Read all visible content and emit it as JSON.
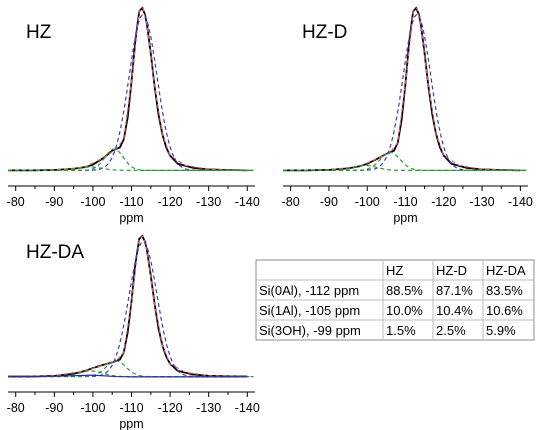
{
  "chart_data": [
    {
      "type": "line",
      "title": "HZ",
      "xlabel": "ppm",
      "ylabel": "",
      "x_ticks": [
        -80,
        -90,
        -100,
        -110,
        -120,
        -130,
        -140
      ],
      "xlim": [
        -78,
        -142
      ],
      "x_reversed": true,
      "peaks_ppm": [
        -112,
        -105,
        -99
      ],
      "series": [
        {
          "key": "experimental",
          "color": "#000000",
          "style": "solid",
          "x": [
            -78,
            -84,
            -90,
            -95,
            -98,
            -100,
            -103,
            -105,
            -107,
            -108,
            -109,
            -110,
            -111,
            -112,
            -112.8,
            -113.5,
            -114,
            -115,
            -116,
            -117,
            -118,
            -119,
            -120,
            -122,
            -126,
            -130,
            -135,
            -140
          ],
          "y": [
            0.01,
            0.01,
            0.012,
            0.02,
            0.03,
            0.045,
            0.09,
            0.13,
            0.15,
            0.2,
            0.33,
            0.55,
            0.8,
            0.98,
            1.0,
            0.96,
            0.9,
            0.72,
            0.52,
            0.35,
            0.23,
            0.15,
            0.1,
            0.05,
            0.025,
            0.016,
            0.012,
            0.01
          ]
        },
        {
          "key": "fit",
          "color": "#e06060",
          "style": "dashed",
          "x": [
            -78,
            -90,
            -98,
            -103,
            -106,
            -108,
            -110,
            -112,
            -113,
            -114,
            -116,
            -118,
            -120,
            -124,
            -130,
            -140
          ],
          "y": [
            0.01,
            0.012,
            0.03,
            0.09,
            0.14,
            0.2,
            0.55,
            0.98,
            1.0,
            0.9,
            0.52,
            0.23,
            0.1,
            0.04,
            0.016,
            0.01
          ]
        },
        {
          "key": "Si(0Al)",
          "color": "#3a3ad0",
          "style": "dashed",
          "center": -113,
          "height": 0.95,
          "width": 3.6
        },
        {
          "key": "Si(1Al)",
          "color": "#2e9a2e",
          "style": "dashed",
          "center": -105.5,
          "height": 0.13,
          "width": 2.4
        },
        {
          "key": "Si(3OH)",
          "color": "#2e9a2e",
          "style": "dashed",
          "center": -99.5,
          "height": 0.02,
          "width": 3.0
        }
      ]
    },
    {
      "type": "line",
      "title": "HZ-D",
      "xlabel": "ppm",
      "ylabel": "",
      "x_ticks": [
        -80,
        -90,
        -100,
        -110,
        -120,
        -130,
        -140
      ],
      "xlim": [
        -78,
        -142
      ],
      "x_reversed": true,
      "series": [
        {
          "key": "experimental",
          "color": "#000000",
          "style": "solid",
          "x": [
            -78,
            -84,
            -90,
            -95,
            -98,
            -100,
            -103,
            -105,
            -107,
            -108,
            -109,
            -110,
            -111,
            -112,
            -112.8,
            -113.5,
            -114,
            -115,
            -116,
            -117,
            -118,
            -119,
            -120,
            -122,
            -126,
            -130,
            -135,
            -140
          ],
          "y": [
            0.01,
            0.01,
            0.013,
            0.022,
            0.035,
            0.05,
            0.085,
            0.11,
            0.13,
            0.18,
            0.32,
            0.54,
            0.8,
            0.98,
            1.0,
            0.96,
            0.9,
            0.72,
            0.52,
            0.35,
            0.23,
            0.15,
            0.1,
            0.05,
            0.025,
            0.016,
            0.012,
            0.01
          ]
        },
        {
          "key": "fit",
          "color": "#e06060",
          "style": "dashed",
          "x": [
            -78,
            -90,
            -98,
            -103,
            -106,
            -108,
            -110,
            -112,
            -113,
            -114,
            -116,
            -118,
            -120,
            -124,
            -130,
            -140
          ],
          "y": [
            0.01,
            0.013,
            0.035,
            0.085,
            0.12,
            0.18,
            0.54,
            0.98,
            1.0,
            0.9,
            0.52,
            0.23,
            0.1,
            0.04,
            0.016,
            0.01
          ]
        },
        {
          "key": "Si(0Al)",
          "color": "#3a3ad0",
          "style": "dashed",
          "center": -113,
          "height": 0.95,
          "width": 3.6
        },
        {
          "key": "Si(1Al)",
          "color": "#2e9a2e",
          "style": "dashed",
          "center": -106,
          "height": 0.11,
          "width": 2.6
        },
        {
          "key": "Si(3OH)",
          "color": "#2e9a2e",
          "style": "dashed",
          "center": -99.5,
          "height": 0.03,
          "width": 3.0
        }
      ]
    },
    {
      "type": "line",
      "title": "HZ-DA",
      "xlabel": "ppm",
      "ylabel": "",
      "x_ticks": [
        -80,
        -90,
        -100,
        -110,
        -120,
        -130,
        -140
      ],
      "xlim": [
        -78,
        -142
      ],
      "x_reversed": true,
      "series": [
        {
          "key": "experimental",
          "color": "#000000",
          "style": "solid",
          "x": [
            -78,
            -84,
            -90,
            -95,
            -98,
            -100,
            -103,
            -105,
            -107,
            -108,
            -109,
            -110,
            -111,
            -112,
            -112.8,
            -113.5,
            -114,
            -115,
            -116,
            -117,
            -118,
            -119,
            -120,
            -122,
            -126,
            -130,
            -135,
            -140
          ],
          "y": [
            0.01,
            0.01,
            0.015,
            0.03,
            0.05,
            0.07,
            0.095,
            0.11,
            0.13,
            0.18,
            0.32,
            0.54,
            0.8,
            0.98,
            1.0,
            0.96,
            0.9,
            0.72,
            0.52,
            0.35,
            0.23,
            0.15,
            0.1,
            0.05,
            0.025,
            0.016,
            0.012,
            0.01
          ]
        },
        {
          "key": "fit",
          "color": "#e06060",
          "style": "dashed",
          "x": [
            -78,
            -90,
            -98,
            -103,
            -106,
            -108,
            -110,
            -112,
            -113,
            -114,
            -116,
            -118,
            -120,
            -124,
            -130,
            -140
          ],
          "y": [
            0.01,
            0.015,
            0.05,
            0.095,
            0.12,
            0.18,
            0.54,
            0.98,
            1.0,
            0.9,
            0.52,
            0.23,
            0.1,
            0.04,
            0.016,
            0.01
          ]
        },
        {
          "key": "Si(0Al)",
          "color": "#3a3ad0",
          "style": "dashed",
          "center": -113,
          "height": 0.95,
          "width": 3.6
        },
        {
          "key": "Si(1Al)",
          "color": "#2e9a2e",
          "style": "dashed",
          "center": -106,
          "height": 0.11,
          "width": 2.6
        },
        {
          "key": "Si(3OH)",
          "color": "#2e9a2e",
          "style": "dashed",
          "center": -99.5,
          "height": 0.04,
          "width": 3.0
        },
        {
          "key": "baseline",
          "color": "#2a2aa0",
          "style": "solid",
          "x": [
            -78,
            -90,
            -100,
            -106,
            -110,
            -140
          ],
          "y": [
            0.01,
            0.012,
            0.02,
            0.01,
            0.008,
            0.008
          ]
        }
      ]
    },
    {
      "type": "table",
      "columns": [
        "",
        "HZ",
        "HZ-D",
        "HZ-DA"
      ],
      "rows": [
        [
          "Si(0Al), -112 ppm",
          "88.5%",
          "87.1%",
          "83.5%"
        ],
        [
          "Si(1Al), -105 ppm",
          "10.0%",
          "10.4%",
          "10.6%"
        ],
        [
          "Si(3OH), -99 ppm",
          "1.5%",
          "2.5%",
          "5.9%"
        ]
      ]
    }
  ]
}
